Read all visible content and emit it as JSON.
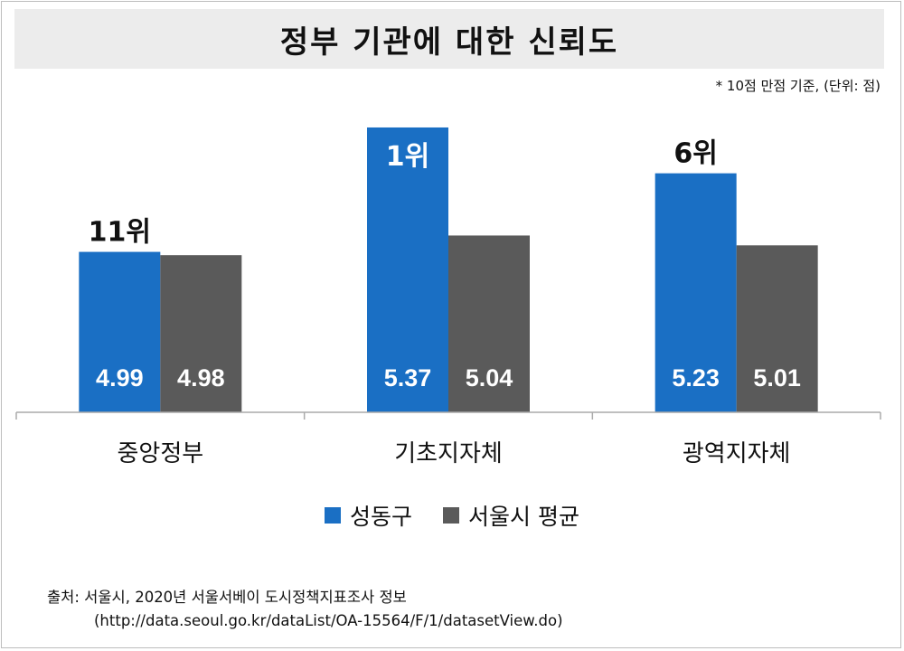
{
  "title": "정부 기관에 대한 신뢰도",
  "unit_note": "* 10점 만점 기준, (단위: 점)",
  "source": {
    "line1": "출처: 서울시, 2020년 서울서베이 도시정책지표조사 정보",
    "line2": "(http://data.seoul.go.kr/dataList/OA-15564/F/1/datasetView.do)"
  },
  "colors": {
    "seongdong": "#1a6fc4",
    "seoul_avg": "#5a5a5a",
    "axis": "#aaaaaa",
    "rank_white": "#ffffff",
    "rank_dark": "#111111"
  },
  "chart_data": {
    "type": "bar",
    "categories": [
      "중앙정부",
      "기초지자체",
      "광역지자체"
    ],
    "series": [
      {
        "name": "성동구",
        "values": [
          4.99,
          5.37,
          5.23
        ],
        "labels": [
          "4.99",
          "5.37",
          "5.23"
        ]
      },
      {
        "name": "서울시 평균",
        "values": [
          4.98,
          5.04,
          5.01
        ],
        "labels": [
          "4.98",
          "5.04",
          "5.01"
        ]
      }
    ],
    "ranks": [
      "11위",
      "1위",
      "6위"
    ],
    "rank_inside_bar": [
      false,
      true,
      false
    ],
    "legend_position": "bottom",
    "grid": false
  }
}
